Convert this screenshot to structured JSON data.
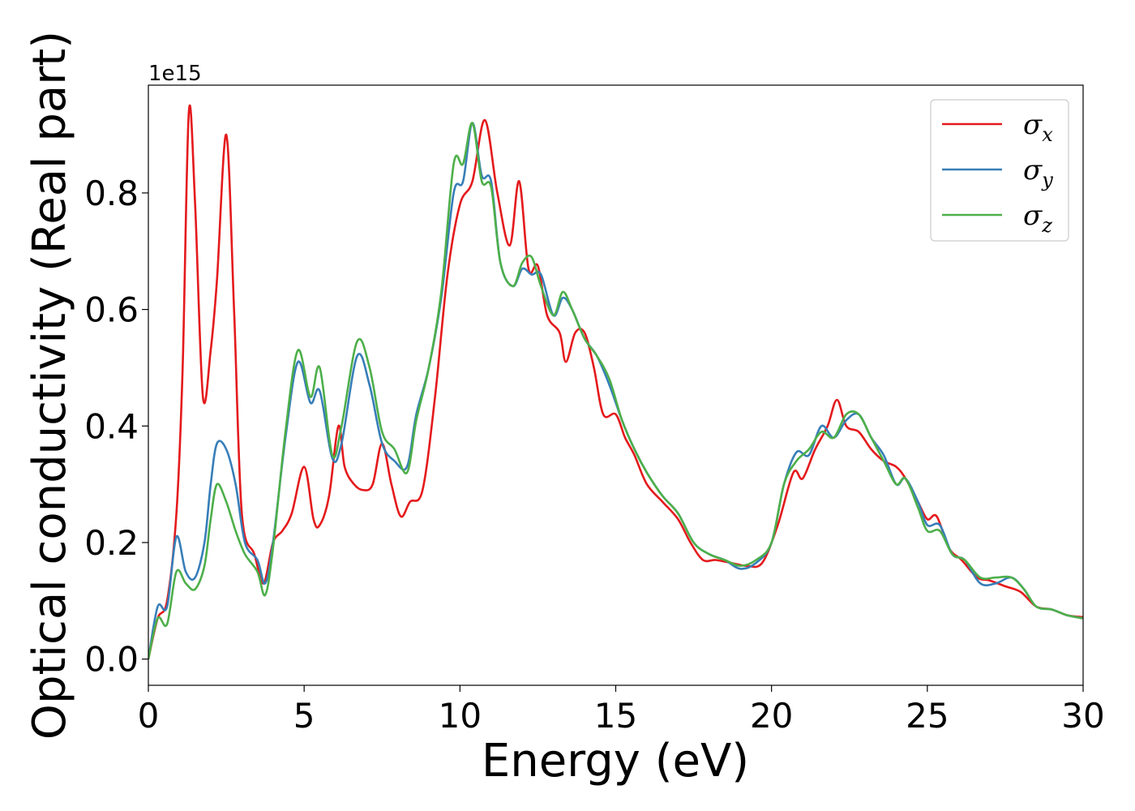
{
  "chart_data": {
    "type": "line",
    "xlabel": "Energy (eV)",
    "ylabel": "Optical conductivity (Real part)",
    "y_offset_text": "1e15",
    "xlim": [
      0,
      30
    ],
    "ylim": [
      -0.045,
      0.985
    ],
    "xticks": [
      0,
      5,
      10,
      15,
      20,
      25,
      30
    ],
    "xtick_labels": [
      "0",
      "5",
      "10",
      "15",
      "20",
      "25",
      "30"
    ],
    "yticks": [
      0.0,
      0.2,
      0.4,
      0.6,
      0.8
    ],
    "ytick_labels": [
      "0.0",
      "0.2",
      "0.4",
      "0.6",
      "0.8"
    ],
    "grid": false,
    "legend_position": "top-right",
    "series": [
      {
        "name": "σx",
        "sub": "x",
        "color": "#e41a1c",
        "points": [
          [
            0,
            0.0
          ],
          [
            0.3,
            0.07
          ],
          [
            0.6,
            0.1
          ],
          [
            0.9,
            0.25
          ],
          [
            1.1,
            0.5
          ],
          [
            1.3,
            0.94
          ],
          [
            1.5,
            0.78
          ],
          [
            1.75,
            0.45
          ],
          [
            2.0,
            0.53
          ],
          [
            2.2,
            0.65
          ],
          [
            2.5,
            0.9
          ],
          [
            2.75,
            0.6
          ],
          [
            3.0,
            0.25
          ],
          [
            3.4,
            0.18
          ],
          [
            3.7,
            0.13
          ],
          [
            4.0,
            0.2
          ],
          [
            4.3,
            0.22
          ],
          [
            4.6,
            0.25
          ],
          [
            5.0,
            0.33
          ],
          [
            5.3,
            0.24
          ],
          [
            5.5,
            0.23
          ],
          [
            5.8,
            0.28
          ],
          [
            6.1,
            0.4
          ],
          [
            6.3,
            0.33
          ],
          [
            6.6,
            0.3
          ],
          [
            6.9,
            0.29
          ],
          [
            7.2,
            0.3
          ],
          [
            7.5,
            0.37
          ],
          [
            7.8,
            0.3
          ],
          [
            8.1,
            0.245
          ],
          [
            8.4,
            0.27
          ],
          [
            8.8,
            0.29
          ],
          [
            9.2,
            0.45
          ],
          [
            9.6,
            0.66
          ],
          [
            10.0,
            0.78
          ],
          [
            10.4,
            0.82
          ],
          [
            10.8,
            0.925
          ],
          [
            11.2,
            0.8
          ],
          [
            11.6,
            0.71
          ],
          [
            11.9,
            0.82
          ],
          [
            12.2,
            0.67
          ],
          [
            12.5,
            0.675
          ],
          [
            12.8,
            0.59
          ],
          [
            13.2,
            0.56
          ],
          [
            13.4,
            0.51
          ],
          [
            13.7,
            0.56
          ],
          [
            14.0,
            0.56
          ],
          [
            14.3,
            0.5
          ],
          [
            14.6,
            0.42
          ],
          [
            15.0,
            0.42
          ],
          [
            15.3,
            0.38
          ],
          [
            15.6,
            0.35
          ],
          [
            16.0,
            0.3
          ],
          [
            16.5,
            0.27
          ],
          [
            17.0,
            0.24
          ],
          [
            17.4,
            0.2
          ],
          [
            17.8,
            0.17
          ],
          [
            18.2,
            0.17
          ],
          [
            18.7,
            0.165
          ],
          [
            19.2,
            0.16
          ],
          [
            19.7,
            0.165
          ],
          [
            20.2,
            0.23
          ],
          [
            20.7,
            0.32
          ],
          [
            21.0,
            0.31
          ],
          [
            21.4,
            0.36
          ],
          [
            21.8,
            0.4
          ],
          [
            22.1,
            0.445
          ],
          [
            22.4,
            0.4
          ],
          [
            22.8,
            0.39
          ],
          [
            23.2,
            0.36
          ],
          [
            23.6,
            0.34
          ],
          [
            24.0,
            0.33
          ],
          [
            24.3,
            0.31
          ],
          [
            24.7,
            0.27
          ],
          [
            25.0,
            0.24
          ],
          [
            25.3,
            0.245
          ],
          [
            25.7,
            0.19
          ],
          [
            26.1,
            0.17
          ],
          [
            26.6,
            0.14
          ],
          [
            27.0,
            0.135
          ],
          [
            27.5,
            0.125
          ],
          [
            28.0,
            0.115
          ],
          [
            28.5,
            0.09
          ],
          [
            29.0,
            0.085
          ],
          [
            29.5,
            0.075
          ],
          [
            30.0,
            0.072
          ]
        ]
      },
      {
        "name": "σy",
        "sub": "y",
        "color": "#377eb8",
        "points": [
          [
            0,
            0.0
          ],
          [
            0.3,
            0.09
          ],
          [
            0.6,
            0.09
          ],
          [
            0.9,
            0.21
          ],
          [
            1.2,
            0.15
          ],
          [
            1.5,
            0.14
          ],
          [
            1.8,
            0.2
          ],
          [
            2.0,
            0.3
          ],
          [
            2.2,
            0.37
          ],
          [
            2.5,
            0.36
          ],
          [
            2.8,
            0.3
          ],
          [
            3.1,
            0.2
          ],
          [
            3.5,
            0.17
          ],
          [
            3.75,
            0.13
          ],
          [
            4.0,
            0.2
          ],
          [
            4.4,
            0.38
          ],
          [
            4.8,
            0.51
          ],
          [
            5.2,
            0.44
          ],
          [
            5.5,
            0.46
          ],
          [
            5.9,
            0.345
          ],
          [
            6.2,
            0.37
          ],
          [
            6.7,
            0.52
          ],
          [
            7.1,
            0.47
          ],
          [
            7.5,
            0.37
          ],
          [
            7.9,
            0.34
          ],
          [
            8.3,
            0.33
          ],
          [
            8.6,
            0.42
          ],
          [
            9.0,
            0.5
          ],
          [
            9.4,
            0.62
          ],
          [
            9.8,
            0.8
          ],
          [
            10.1,
            0.82
          ],
          [
            10.4,
            0.92
          ],
          [
            10.7,
            0.83
          ],
          [
            11.0,
            0.82
          ],
          [
            11.3,
            0.68
          ],
          [
            11.7,
            0.64
          ],
          [
            12.0,
            0.67
          ],
          [
            12.3,
            0.66
          ],
          [
            12.6,
            0.66
          ],
          [
            13.0,
            0.59
          ],
          [
            13.3,
            0.62
          ],
          [
            13.6,
            0.6
          ],
          [
            14.0,
            0.55
          ],
          [
            14.4,
            0.52
          ],
          [
            14.8,
            0.47
          ],
          [
            15.2,
            0.41
          ],
          [
            15.6,
            0.36
          ],
          [
            16.0,
            0.32
          ],
          [
            16.5,
            0.28
          ],
          [
            17.0,
            0.25
          ],
          [
            17.5,
            0.2
          ],
          [
            18.0,
            0.18
          ],
          [
            18.5,
            0.17
          ],
          [
            19.0,
            0.155
          ],
          [
            19.5,
            0.165
          ],
          [
            20.0,
            0.2
          ],
          [
            20.4,
            0.3
          ],
          [
            20.8,
            0.355
          ],
          [
            21.2,
            0.35
          ],
          [
            21.6,
            0.4
          ],
          [
            22.0,
            0.38
          ],
          [
            22.4,
            0.41
          ],
          [
            22.8,
            0.42
          ],
          [
            23.2,
            0.38
          ],
          [
            23.6,
            0.35
          ],
          [
            24.0,
            0.3
          ],
          [
            24.3,
            0.31
          ],
          [
            24.7,
            0.27
          ],
          [
            25.0,
            0.23
          ],
          [
            25.4,
            0.23
          ],
          [
            25.8,
            0.18
          ],
          [
            26.2,
            0.17
          ],
          [
            26.7,
            0.13
          ],
          [
            27.2,
            0.13
          ],
          [
            27.7,
            0.14
          ],
          [
            28.1,
            0.12
          ],
          [
            28.5,
            0.09
          ],
          [
            29.0,
            0.085
          ],
          [
            29.5,
            0.075
          ],
          [
            30.0,
            0.07
          ]
        ]
      },
      {
        "name": "σz",
        "sub": "z",
        "color": "#4daf4a",
        "points": [
          [
            0,
            0.0
          ],
          [
            0.3,
            0.07
          ],
          [
            0.6,
            0.06
          ],
          [
            0.9,
            0.15
          ],
          [
            1.2,
            0.13
          ],
          [
            1.5,
            0.12
          ],
          [
            1.8,
            0.16
          ],
          [
            2.0,
            0.24
          ],
          [
            2.2,
            0.3
          ],
          [
            2.5,
            0.27
          ],
          [
            2.8,
            0.22
          ],
          [
            3.1,
            0.18
          ],
          [
            3.5,
            0.15
          ],
          [
            3.75,
            0.11
          ],
          [
            4.0,
            0.19
          ],
          [
            4.4,
            0.39
          ],
          [
            4.8,
            0.53
          ],
          [
            5.2,
            0.45
          ],
          [
            5.5,
            0.5
          ],
          [
            5.9,
            0.35
          ],
          [
            6.2,
            0.4
          ],
          [
            6.7,
            0.545
          ],
          [
            7.1,
            0.5
          ],
          [
            7.5,
            0.39
          ],
          [
            7.9,
            0.36
          ],
          [
            8.3,
            0.32
          ],
          [
            8.6,
            0.41
          ],
          [
            9.0,
            0.5
          ],
          [
            9.4,
            0.63
          ],
          [
            9.8,
            0.85
          ],
          [
            10.1,
            0.85
          ],
          [
            10.4,
            0.92
          ],
          [
            10.7,
            0.82
          ],
          [
            11.0,
            0.81
          ],
          [
            11.3,
            0.68
          ],
          [
            11.7,
            0.64
          ],
          [
            12.0,
            0.68
          ],
          [
            12.3,
            0.69
          ],
          [
            12.6,
            0.64
          ],
          [
            13.0,
            0.59
          ],
          [
            13.3,
            0.63
          ],
          [
            13.6,
            0.6
          ],
          [
            14.0,
            0.55
          ],
          [
            14.4,
            0.52
          ],
          [
            14.8,
            0.48
          ],
          [
            15.2,
            0.41
          ],
          [
            15.6,
            0.36
          ],
          [
            16.0,
            0.32
          ],
          [
            16.5,
            0.28
          ],
          [
            17.0,
            0.25
          ],
          [
            17.5,
            0.2
          ],
          [
            18.0,
            0.18
          ],
          [
            18.5,
            0.17
          ],
          [
            19.0,
            0.16
          ],
          [
            19.5,
            0.17
          ],
          [
            20.0,
            0.2
          ],
          [
            20.4,
            0.3
          ],
          [
            20.8,
            0.34
          ],
          [
            21.2,
            0.36
          ],
          [
            21.6,
            0.39
          ],
          [
            22.0,
            0.38
          ],
          [
            22.4,
            0.42
          ],
          [
            22.8,
            0.42
          ],
          [
            23.2,
            0.38
          ],
          [
            23.6,
            0.34
          ],
          [
            24.0,
            0.3
          ],
          [
            24.3,
            0.31
          ],
          [
            24.7,
            0.26
          ],
          [
            25.0,
            0.22
          ],
          [
            25.4,
            0.22
          ],
          [
            25.8,
            0.18
          ],
          [
            26.2,
            0.17
          ],
          [
            26.7,
            0.14
          ],
          [
            27.2,
            0.14
          ],
          [
            27.7,
            0.14
          ],
          [
            28.1,
            0.12
          ],
          [
            28.5,
            0.09
          ],
          [
            29.0,
            0.085
          ],
          [
            29.5,
            0.075
          ],
          [
            30.0,
            0.07
          ]
        ]
      }
    ]
  }
}
